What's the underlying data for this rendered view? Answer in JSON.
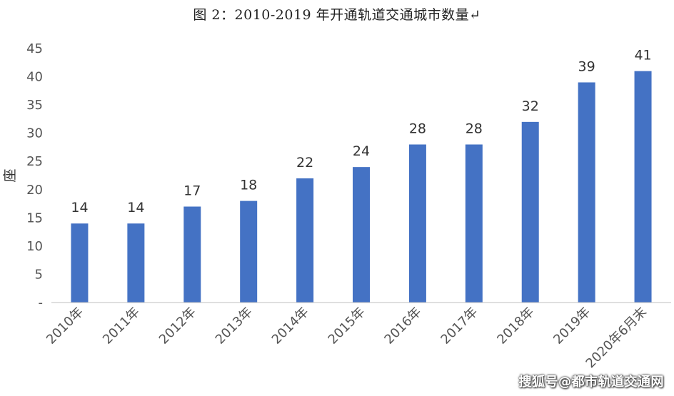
{
  "chart_data": {
    "type": "bar",
    "title": "图 2：2010-2019 年开通轨道交通城市数量↵",
    "ylabel": "座",
    "xlabel": "",
    "categories": [
      "2010年",
      "2011年",
      "2012年",
      "2013年",
      "2014年",
      "2015年",
      "2016年",
      "2017年",
      "2018年",
      "2019年",
      "2020年6月末"
    ],
    "values": [
      14,
      14,
      17,
      18,
      22,
      24,
      28,
      28,
      32,
      39,
      41
    ],
    "ylim": [
      0,
      45
    ],
    "yticks": [
      0,
      5,
      10,
      15,
      20,
      25,
      30,
      35,
      40,
      45
    ],
    "ytick_labels": [
      "-",
      "5",
      "10",
      "15",
      "20",
      "25",
      "30",
      "35",
      "40",
      "45"
    ],
    "data_labels": [
      "14",
      "14",
      "17",
      "18",
      "22",
      "24",
      "28",
      "28",
      "32",
      "39",
      "41"
    ],
    "grid": false,
    "colors": {
      "bar": "#4472C4",
      "axis": "#bfbfbf"
    }
  },
  "watermark": "搜狐号@都市轨道交通网"
}
